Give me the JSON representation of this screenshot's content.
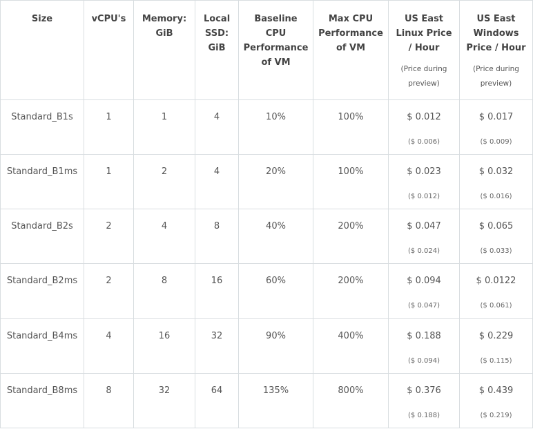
{
  "headers": [
    {
      "label": "Size",
      "note": ""
    },
    {
      "label": "vCPU's",
      "note": ""
    },
    {
      "label": "Memory: GiB",
      "note": ""
    },
    {
      "label": "Local SSD: GiB",
      "note": ""
    },
    {
      "label": "Baseline CPU Performance of VM",
      "note": ""
    },
    {
      "label": "Max CPU Performance of VM",
      "note": ""
    },
    {
      "label": "US East Linux Price / Hour",
      "note": "(Price during preview)"
    },
    {
      "label": "US East Windows Price / Hour",
      "note": "(Price during preview)"
    }
  ],
  "rows": [
    {
      "size": "Standard_B1s",
      "vcpus": "1",
      "memory": "1",
      "ssd": "4",
      "baseline": "10%",
      "max_cpu": "100%",
      "linux_price": "$ 0.012",
      "linux_preview": "($ 0.006)",
      "windows_price": "$ 0.017",
      "windows_preview": "($ 0.009)"
    },
    {
      "size": "Standard_B1ms",
      "vcpus": "1",
      "memory": "2",
      "ssd": "4",
      "baseline": "20%",
      "max_cpu": "100%",
      "linux_price": "$ 0.023",
      "linux_preview": "($ 0.012)",
      "windows_price": "$ 0.032",
      "windows_preview": "($ 0.016)"
    },
    {
      "size": "Standard_B2s",
      "vcpus": "2",
      "memory": "4",
      "ssd": "8",
      "baseline": "40%",
      "max_cpu": "200%",
      "linux_price": "$ 0.047",
      "linux_preview": "($ 0.024)",
      "windows_price": "$ 0.065",
      "windows_preview": "($ 0.033)"
    },
    {
      "size": "Standard_B2ms",
      "vcpus": "2",
      "memory": "8",
      "ssd": "16",
      "baseline": "60%",
      "max_cpu": "200%",
      "linux_price": "$ 0.094",
      "linux_preview": "($ 0.047)",
      "windows_price": "$ 0.0122",
      "windows_preview": "($ 0.061)"
    },
    {
      "size": "Standard_B4ms",
      "vcpus": "4",
      "memory": "16",
      "ssd": "32",
      "baseline": "90%",
      "max_cpu": "400%",
      "linux_price": "$ 0.188",
      "linux_preview": "($ 0.094)",
      "windows_price": "$ 0.229",
      "windows_preview": "($ 0.115)"
    },
    {
      "size": "Standard_B8ms",
      "vcpus": "8",
      "memory": "32",
      "ssd": "64",
      "baseline": "135%",
      "max_cpu": "800%",
      "linux_price": "$ 0.376",
      "linux_preview": "($ 0.188)",
      "windows_price": "$ 0.439",
      "windows_preview": "($ 0.219)"
    }
  ],
  "colors": {
    "border": "#d8dde0",
    "header_text": "#444444",
    "cell_text": "#555555"
  }
}
